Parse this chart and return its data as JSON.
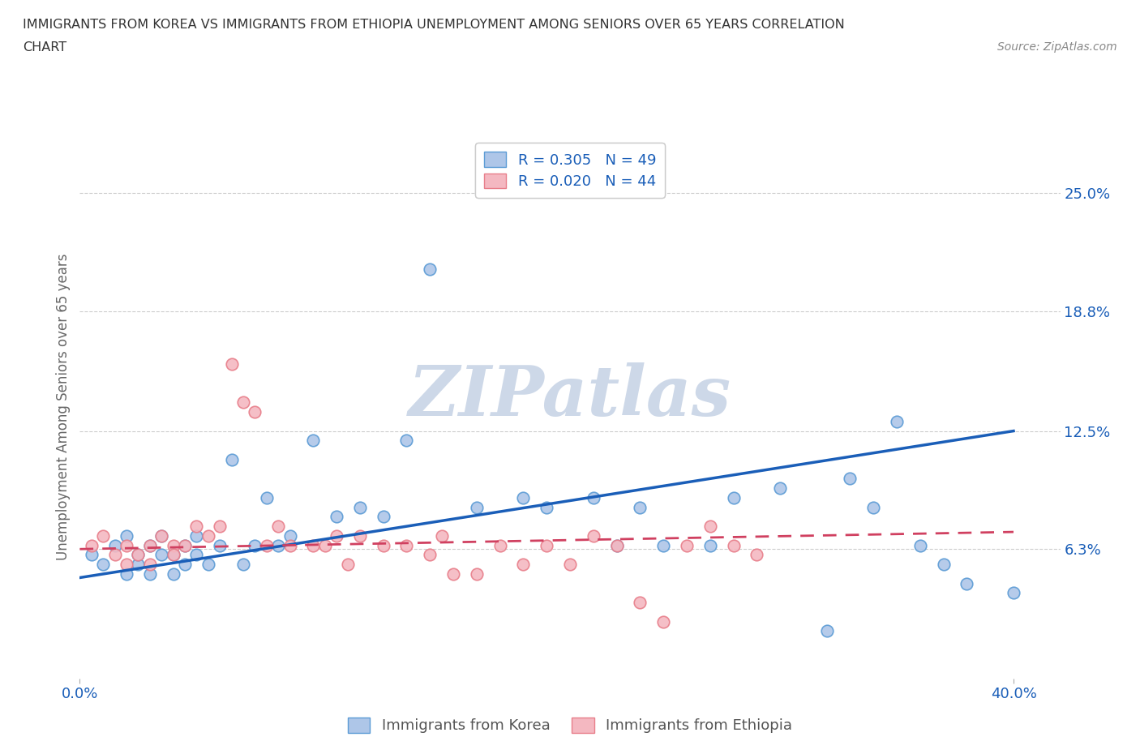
{
  "title_line1": "IMMIGRANTS FROM KOREA VS IMMIGRANTS FROM ETHIOPIA UNEMPLOYMENT AMONG SENIORS OVER 65 YEARS CORRELATION",
  "title_line2": "CHART",
  "source": "Source: ZipAtlas.com",
  "ylabel": "Unemployment Among Seniors over 65 years",
  "xlim": [
    0.0,
    0.42
  ],
  "ylim": [
    -0.005,
    0.28
  ],
  "ytick_positions": [
    0.063,
    0.125,
    0.188,
    0.25
  ],
  "ytick_labels": [
    "6.3%",
    "12.5%",
    "18.8%",
    "25.0%"
  ],
  "grid_color": "#cccccc",
  "background_color": "#ffffff",
  "korea_color": "#aec6e8",
  "korea_edge_color": "#5b9bd5",
  "ethiopia_color": "#f4b8c1",
  "ethiopia_edge_color": "#e87e8a",
  "legend_korea_label": "R = 0.305   N = 49",
  "legend_ethiopia_label": "R = 0.020   N = 44",
  "watermark": "ZIPatlas",
  "watermark_color": "#cdd8e8",
  "korea_scatter_x": [
    0.005,
    0.01,
    0.015,
    0.02,
    0.02,
    0.025,
    0.025,
    0.03,
    0.03,
    0.035,
    0.035,
    0.04,
    0.04,
    0.045,
    0.045,
    0.05,
    0.05,
    0.055,
    0.06,
    0.065,
    0.07,
    0.075,
    0.08,
    0.085,
    0.09,
    0.1,
    0.11,
    0.12,
    0.13,
    0.14,
    0.15,
    0.17,
    0.19,
    0.2,
    0.22,
    0.23,
    0.24,
    0.25,
    0.27,
    0.28,
    0.3,
    0.32,
    0.33,
    0.34,
    0.35,
    0.36,
    0.37,
    0.38,
    0.4
  ],
  "korea_scatter_y": [
    0.06,
    0.055,
    0.065,
    0.05,
    0.07,
    0.055,
    0.06,
    0.05,
    0.065,
    0.06,
    0.07,
    0.06,
    0.05,
    0.065,
    0.055,
    0.06,
    0.07,
    0.055,
    0.065,
    0.11,
    0.055,
    0.065,
    0.09,
    0.065,
    0.07,
    0.12,
    0.08,
    0.085,
    0.08,
    0.12,
    0.21,
    0.085,
    0.09,
    0.085,
    0.09,
    0.065,
    0.085,
    0.065,
    0.065,
    0.09,
    0.095,
    0.02,
    0.1,
    0.085,
    0.13,
    0.065,
    0.055,
    0.045,
    0.04
  ],
  "ethiopia_scatter_x": [
    0.005,
    0.01,
    0.015,
    0.02,
    0.02,
    0.025,
    0.03,
    0.03,
    0.035,
    0.04,
    0.04,
    0.045,
    0.05,
    0.055,
    0.06,
    0.065,
    0.07,
    0.075,
    0.08,
    0.085,
    0.09,
    0.1,
    0.105,
    0.11,
    0.115,
    0.12,
    0.13,
    0.14,
    0.15,
    0.155,
    0.16,
    0.17,
    0.18,
    0.19,
    0.2,
    0.21,
    0.22,
    0.23,
    0.24,
    0.25,
    0.26,
    0.27,
    0.28,
    0.29
  ],
  "ethiopia_scatter_y": [
    0.065,
    0.07,
    0.06,
    0.065,
    0.055,
    0.06,
    0.065,
    0.055,
    0.07,
    0.065,
    0.06,
    0.065,
    0.075,
    0.07,
    0.075,
    0.16,
    0.14,
    0.135,
    0.065,
    0.075,
    0.065,
    0.065,
    0.065,
    0.07,
    0.055,
    0.07,
    0.065,
    0.065,
    0.06,
    0.07,
    0.05,
    0.05,
    0.065,
    0.055,
    0.065,
    0.055,
    0.07,
    0.065,
    0.035,
    0.025,
    0.065,
    0.075,
    0.065,
    0.06
  ],
  "korea_trend_x0": 0.0,
  "korea_trend_x1": 0.4,
  "korea_trend_y0": 0.048,
  "korea_trend_y1": 0.125,
  "ethiopia_trend_x0": 0.0,
  "ethiopia_trend_x1": 0.4,
  "ethiopia_trend_y0": 0.063,
  "ethiopia_trend_y1": 0.072,
  "trend_korea_color": "#1a5eb8",
  "trend_ethiopia_color": "#d04060"
}
